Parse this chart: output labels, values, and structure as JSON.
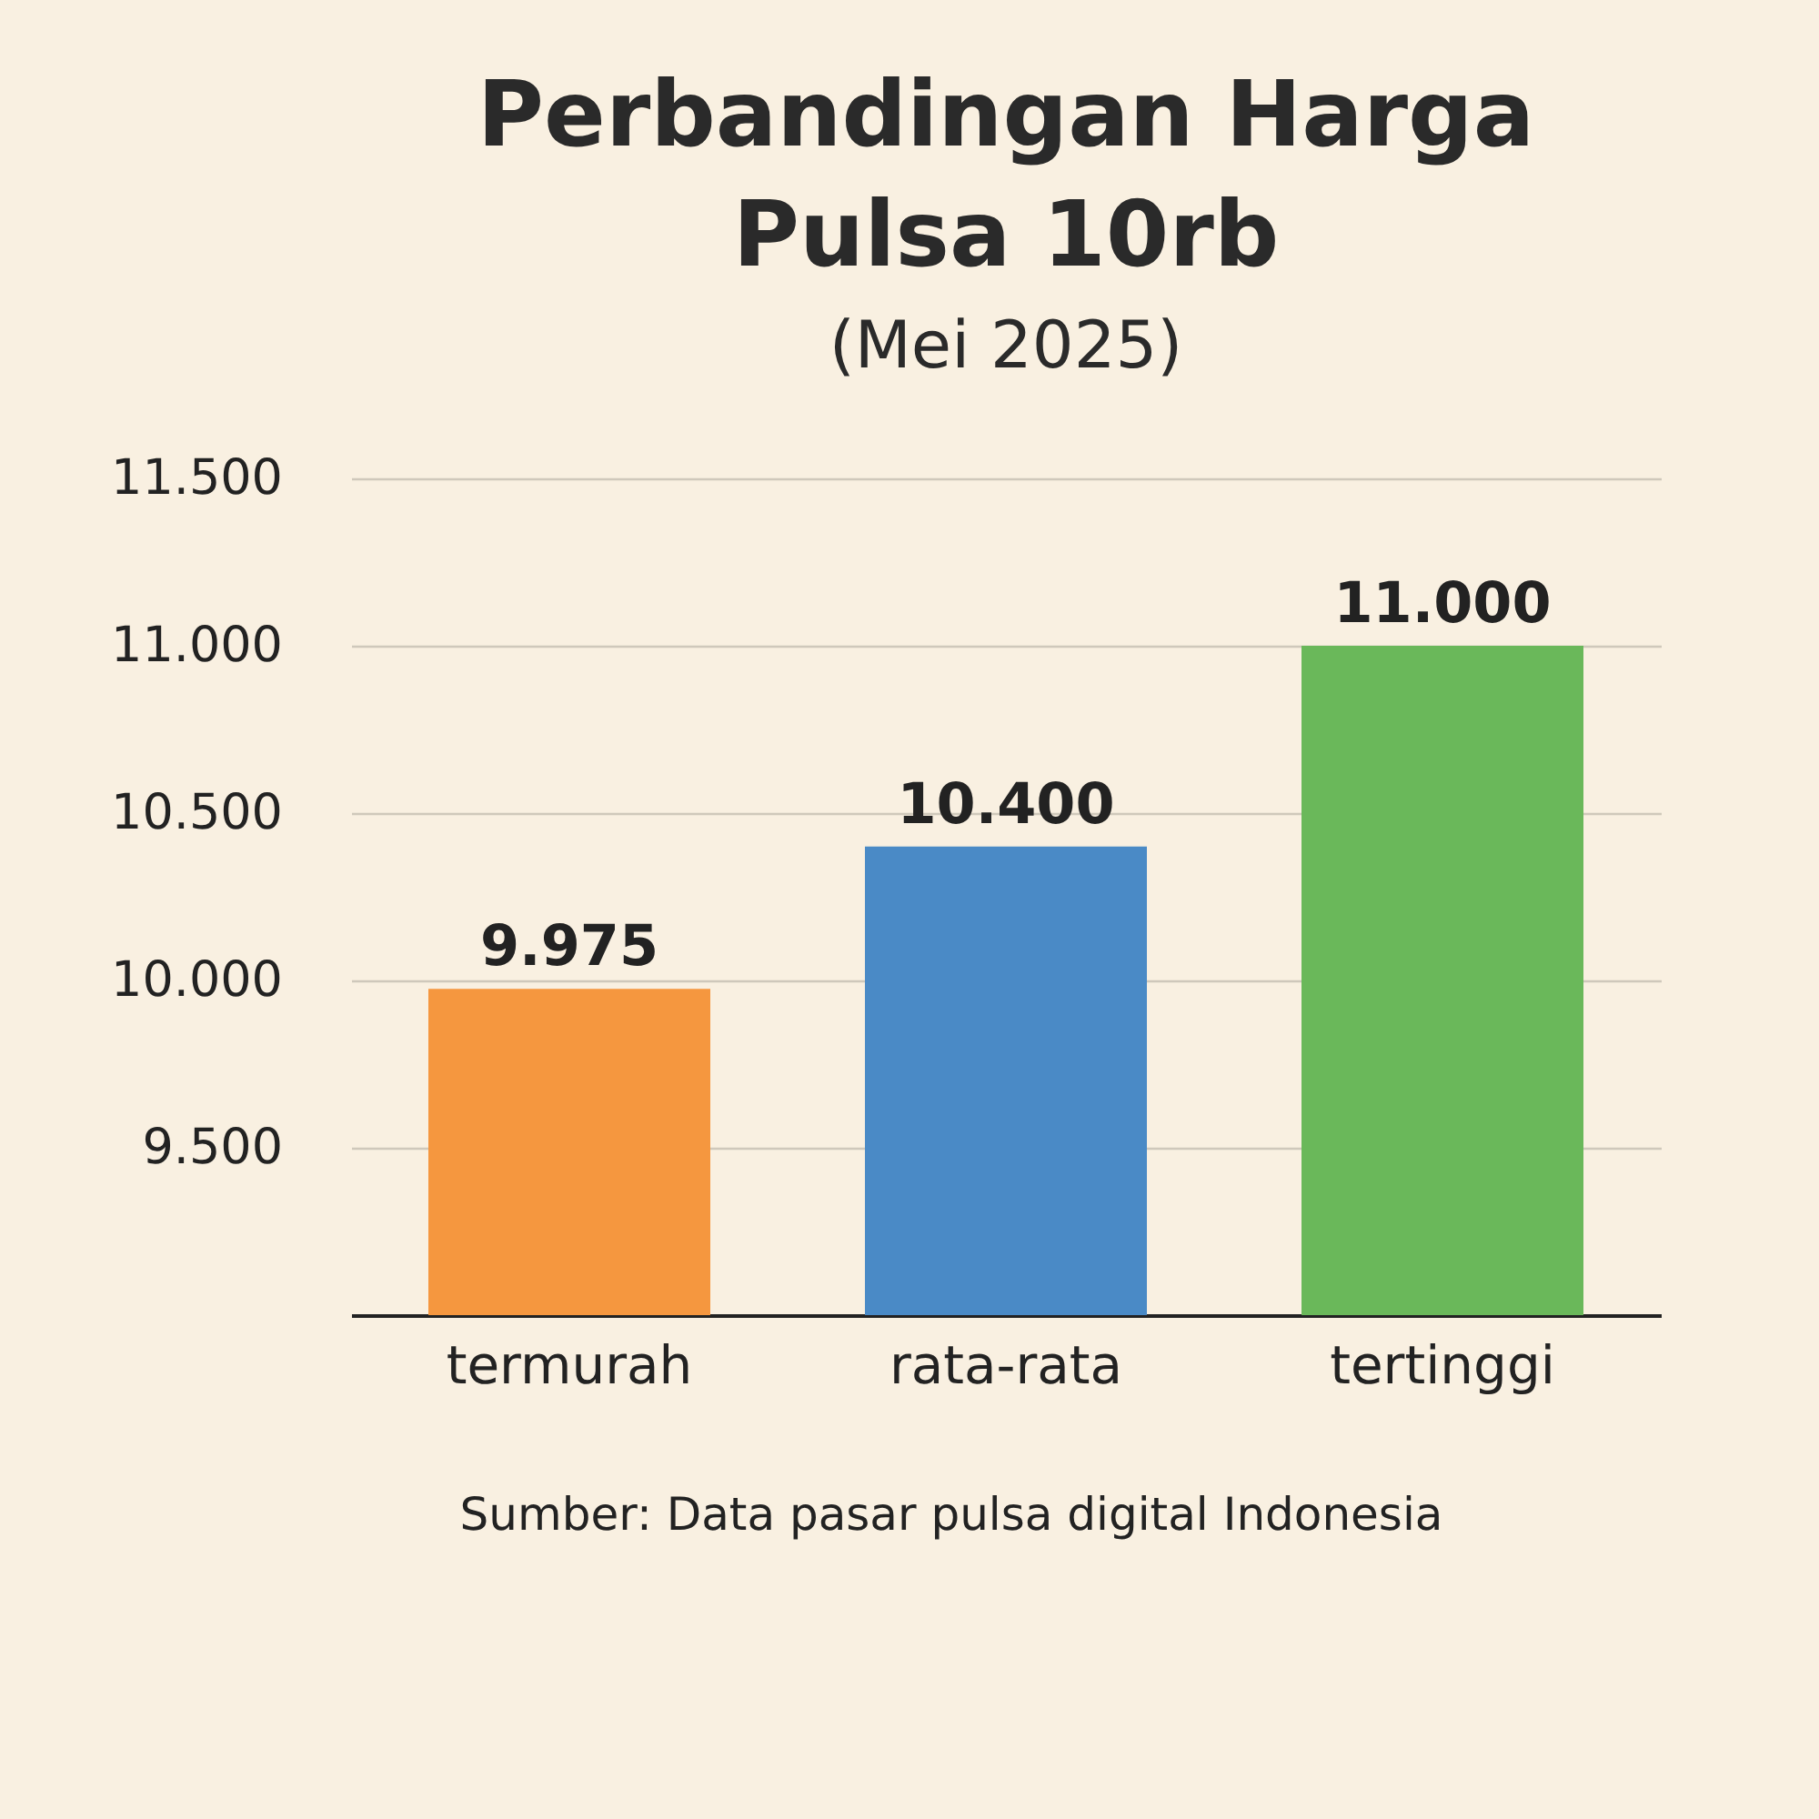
{
  "chart_data": {
    "type": "bar",
    "title": "Perbandingan Harga Pulsa 10rb",
    "subtitle": "(Mei 2025)",
    "categories": [
      "termurah",
      "rata-rata",
      "tertinggi"
    ],
    "values": [
      9975,
      10400,
      11000
    ],
    "colors": [
      "#f5973f",
      "#4a8ac6",
      "#6ab85a"
    ],
    "value_labels": [
      "9.975",
      "10.400",
      "11.000"
    ],
    "ylim": [
      9000,
      11500
    ],
    "yticks": [
      {
        "value": 9500,
        "label": "9.500"
      },
      {
        "value": 10000,
        "label": "10.000"
      },
      {
        "value": 10500,
        "label": "10.500"
      },
      {
        "value": 11000,
        "label": "11.000"
      },
      {
        "value": 11500,
        "label": "11.500"
      }
    ],
    "grid": "y",
    "legend": false,
    "annotations": [
      "Sumber: Data pasar pulsa digital Indonesia"
    ]
  }
}
